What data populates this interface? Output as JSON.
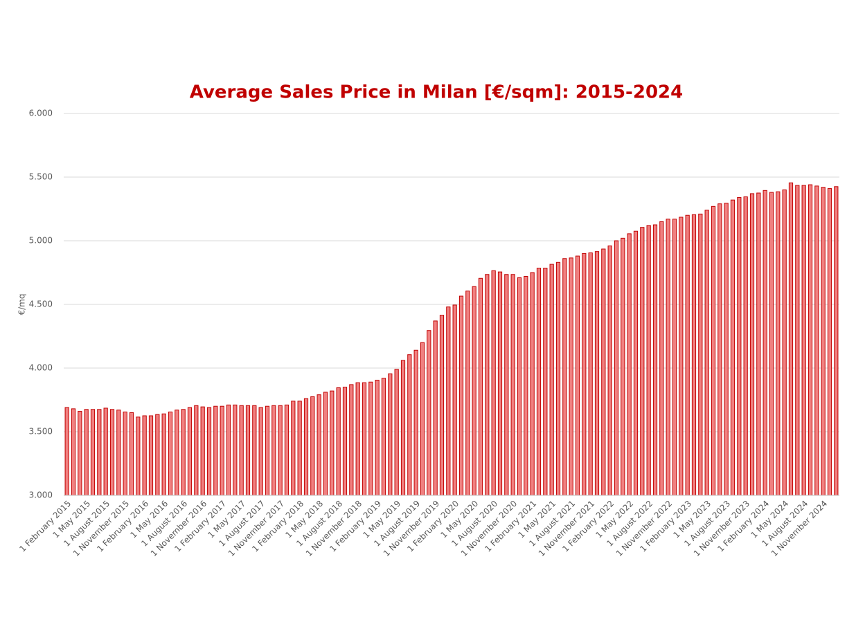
{
  "chart_data": {
    "type": "bar",
    "title": "Average Sales Price in Milan [€/sqm]: 2015-2024",
    "y_label": "€/mq",
    "categories": [
      "1 February 2015",
      null,
      null,
      "1 May 2015",
      null,
      null,
      "1 August 2015",
      null,
      null,
      "1 November 2015",
      null,
      null,
      "1 February 2016",
      null,
      null,
      "1 May 2016",
      null,
      null,
      "1 August 2016",
      null,
      null,
      "1 November 2016",
      null,
      null,
      "1 February 2017",
      null,
      null,
      "1 May 2017",
      null,
      null,
      "1 August 2017",
      null,
      null,
      "1 November 2017",
      null,
      null,
      "1 February 2018",
      null,
      null,
      "1 May 2018",
      null,
      null,
      "1 August 2018",
      null,
      null,
      "1 November 2018",
      null,
      null,
      "1 February 2019",
      null,
      null,
      "1 May 2019",
      null,
      null,
      "1 August 2019",
      null,
      null,
      "1 November 2019",
      null,
      null,
      "1 February 2020",
      null,
      null,
      "1 May 2020",
      null,
      null,
      "1 August 2020",
      null,
      null,
      "1 November 2020",
      null,
      null,
      "1 February 2021",
      null,
      null,
      "1 May 2021",
      null,
      null,
      "1 August 2021",
      null,
      null,
      "1 November 2021",
      null,
      null,
      "1 February 2022",
      null,
      null,
      "1 May 2022",
      null,
      null,
      "1 August 2022",
      null,
      null,
      "1 November 2022",
      null,
      null,
      "1 February 2023",
      null,
      null,
      "1 May 2023",
      null,
      null,
      "1 August 2023",
      null,
      null,
      "1 November 2023",
      null,
      null,
      "1 February 2024",
      null,
      null,
      "1 May 2024",
      null,
      null,
      "1 August 2024",
      null,
      null,
      "1 November 2024",
      null,
      null
    ],
    "values": [
      3690,
      3680,
      3660,
      3675,
      3675,
      3675,
      3685,
      3675,
      3670,
      3655,
      3650,
      3615,
      3625,
      3625,
      3635,
      3640,
      3655,
      3670,
      3675,
      3690,
      3705,
      3695,
      3690,
      3700,
      3700,
      3710,
      3710,
      3705,
      3705,
      3705,
      3690,
      3700,
      3705,
      3705,
      3710,
      3740,
      3740,
      3760,
      3775,
      3790,
      3810,
      3820,
      3845,
      3850,
      3870,
      3885,
      3885,
      3890,
      3905,
      3920,
      3955,
      3990,
      4060,
      4105,
      4140,
      4200,
      4295,
      4370,
      4415,
      4480,
      4495,
      4565,
      4605,
      4640,
      4705,
      4735,
      4765,
      4755,
      4735,
      4735,
      4710,
      4720,
      4750,
      4785,
      4785,
      4815,
      4830,
      4860,
      4865,
      4880,
      4900,
      4905,
      4915,
      4935,
      4960,
      5000,
      5020,
      5055,
      5075,
      5105,
      5120,
      5125,
      5150,
      5170,
      5170,
      5185,
      5200,
      5205,
      5210,
      5240,
      5270,
      5290,
      5295,
      5320,
      5340,
      5345,
      5370,
      5375,
      5395,
      5380,
      5385,
      5400,
      5455,
      5435,
      5435,
      5440,
      5430,
      5420,
      5410,
      5425
    ],
    "color": "#f08080",
    "edge_color": "#c00000",
    "ylim": [
      3000,
      6000
    ],
    "yticks": [
      {
        "value": 3000,
        "label": "3.000"
      },
      {
        "value": 3500,
        "label": "3.500"
      },
      {
        "value": 4000,
        "label": "4.000"
      },
      {
        "value": 4500,
        "label": "4.500"
      },
      {
        "value": 5000,
        "label": "5.000"
      },
      {
        "value": 5500,
        "label": "5.500"
      },
      {
        "value": 6000,
        "label": "6.000"
      }
    ],
    "grid": true
  }
}
